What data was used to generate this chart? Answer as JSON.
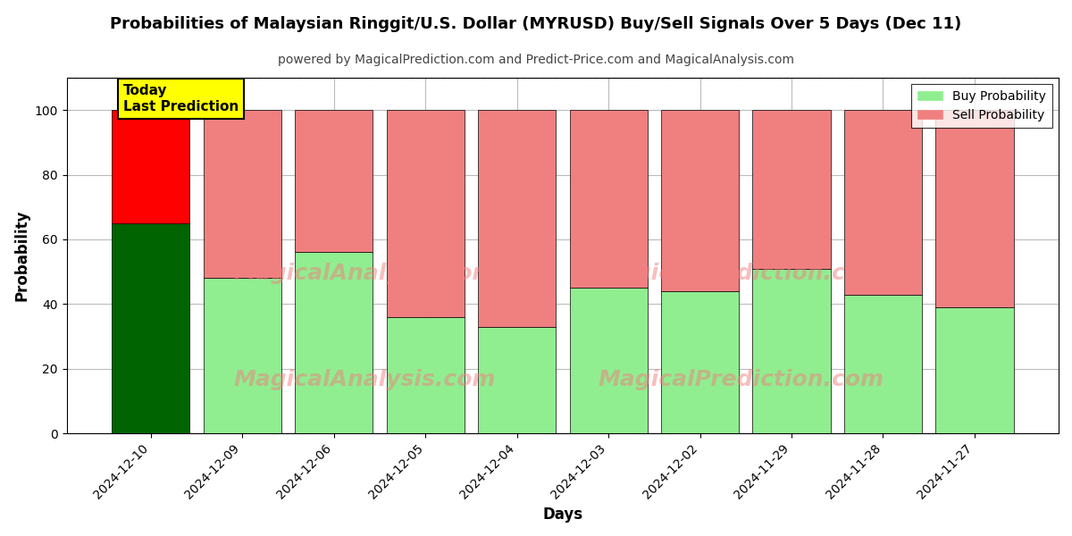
{
  "title": "Probabilities of Malaysian Ringgit/U.S. Dollar (MYRUSD) Buy/Sell Signals Over 5 Days (Dec 11)",
  "subtitle": "powered by MagicalPrediction.com and Predict-Price.com and MagicalAnalysis.com",
  "xlabel": "Days",
  "ylabel": "Probability",
  "categories": [
    "2024-12-10",
    "2024-12-09",
    "2024-12-06",
    "2024-12-05",
    "2024-12-04",
    "2024-12-03",
    "2024-12-02",
    "2024-11-29",
    "2024-11-28",
    "2024-11-27"
  ],
  "buy_values": [
    65,
    48,
    56,
    36,
    33,
    45,
    44,
    51,
    43,
    39
  ],
  "sell_values": [
    35,
    52,
    44,
    64,
    67,
    55,
    56,
    49,
    57,
    61
  ],
  "today_buy_color": "#006400",
  "today_sell_color": "#FF0000",
  "buy_color": "#90EE90",
  "sell_color": "#F08080",
  "today_label_bg": "#FFFF00",
  "today_label_text": "Today\nLast Prediction",
  "legend_buy": "Buy Probability",
  "legend_sell": "Sell Probability",
  "ylim": [
    0,
    110
  ],
  "yticks": [
    0,
    20,
    40,
    60,
    80,
    100
  ],
  "dashed_line_y": 110,
  "watermark_left": "MagicalAnalysis.com",
  "watermark_right": "MagicalPrediction.com",
  "bg_color": "#ffffff",
  "grid_color": "#bbbbbb",
  "title_fontsize": 13,
  "subtitle_fontsize": 10,
  "label_fontsize": 12,
  "bar_width": 0.85
}
